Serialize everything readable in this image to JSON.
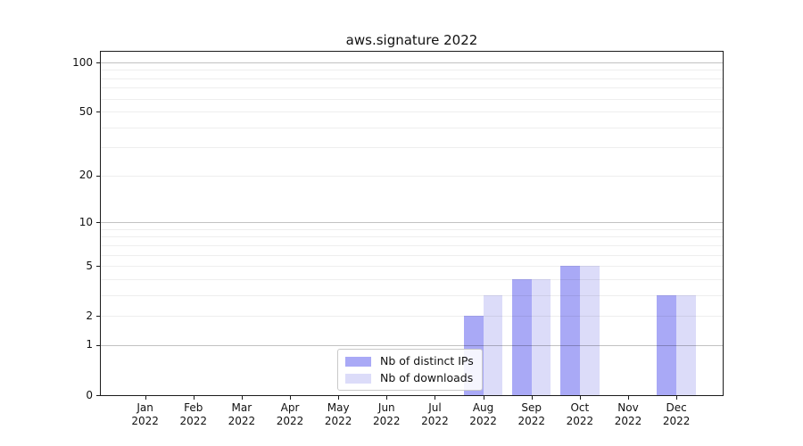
{
  "title": "aws.signature 2022",
  "legend": {
    "items": [
      {
        "label": "Nb of distinct IPs",
        "color": "#a9a9f6"
      },
      {
        "label": "Nb of downloads",
        "color": "#dcdcf9"
      }
    ]
  },
  "chart_data": {
    "type": "bar",
    "title": "aws.signature 2022",
    "xlabel": "",
    "ylabel": "",
    "y_scale": "log1p",
    "categories": [
      "Jan 2022",
      "Feb 2022",
      "Mar 2022",
      "Apr 2022",
      "May 2022",
      "Jun 2022",
      "Jul 2022",
      "Aug 2022",
      "Sep 2022",
      "Oct 2022",
      "Nov 2022",
      "Dec 2022"
    ],
    "series": [
      {
        "name": "Nb of distinct IPs",
        "color": "#a9a9f6",
        "values": [
          0,
          0,
          0,
          0,
          0,
          0,
          0,
          2,
          4,
          5,
          0,
          3
        ]
      },
      {
        "name": "Nb of downloads",
        "color": "#dcdcf9",
        "values": [
          0,
          0,
          0,
          0,
          0,
          0,
          0,
          3,
          4,
          5,
          0,
          3
        ]
      }
    ],
    "yticks": [
      0,
      1,
      2,
      5,
      10,
      20,
      50,
      100
    ],
    "ytick_labels": [
      "0",
      "1",
      "2",
      "5",
      "10",
      "20",
      "50",
      "100"
    ],
    "ylim": [
      0,
      116
    ],
    "grid": "horizontal-minor-and-major",
    "legend_position": "inside lower center-right"
  },
  "colors": {
    "bar_dark": "#a9a9f6",
    "bar_light": "#dcdcf9",
    "spine": "#1b1b1b",
    "grid_minor": "#ededed",
    "grid_major": "#c2c2c2",
    "background": "#ffffff"
  }
}
